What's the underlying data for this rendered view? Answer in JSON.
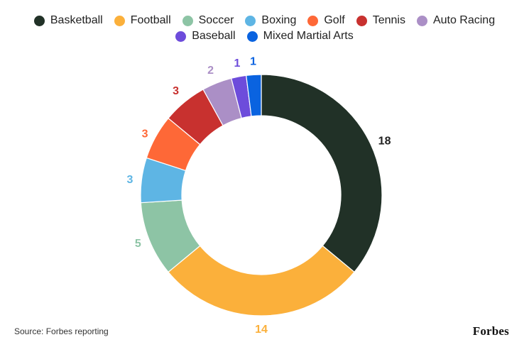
{
  "chart_data": {
    "type": "pie",
    "categories": [
      "Basketball",
      "Football",
      "Soccer",
      "Boxing",
      "Golf",
      "Tennis",
      "Auto Racing",
      "Baseball",
      "Mixed Martial Arts"
    ],
    "values": [
      18,
      14,
      5,
      3,
      3,
      3,
      2,
      1,
      1
    ],
    "colors": [
      "#213127",
      "#fbb03b",
      "#8dc4a5",
      "#5eb5e4",
      "#fe6837",
      "#c8312f",
      "#ab8fc6",
      "#6d4cdb",
      "#0a63e0"
    ],
    "legend_position": "top",
    "donut": true
  },
  "legend": {
    "rows": [
      [
        "Basketball",
        "Football",
        "Soccer",
        "Boxing",
        "Golf",
        "Tennis",
        "Auto Racing"
      ],
      [
        "Baseball",
        "Mixed Martial Arts"
      ]
    ]
  },
  "footer": {
    "source": "Source: Forbes reporting",
    "brand": "Forbes"
  }
}
